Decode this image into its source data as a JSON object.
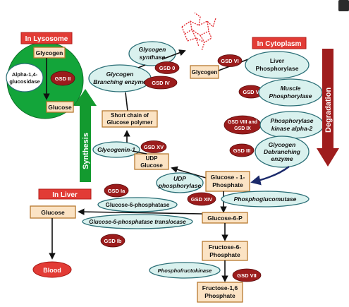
{
  "regions": {
    "lysosome": "In Lysosome",
    "cytoplasm": "In Cytoplasm",
    "liver": "In Liver"
  },
  "nodes": {
    "glycogen_lys": "Glycogen",
    "glucose_lys": "Glucose",
    "alpha_glucosidase": [
      "Alpha-1,4-",
      "glucosidase"
    ],
    "glycogen_synthase": [
      "Glycogen",
      "synthase"
    ],
    "branching_enzyme": [
      "Glycogen",
      "Branching enzyme"
    ],
    "short_chain": [
      "Short chain of",
      "Glucose polymer"
    ],
    "glycogenin": "Glycogenin-1",
    "udp_glucose": [
      "UDP",
      "Glucose"
    ],
    "udp_phosphorylase": [
      "UDP",
      "phosphorylase"
    ],
    "glycogen_cyt": "Glycogen",
    "liver_phosphorylase": [
      "Liver",
      "Phosphorylase"
    ],
    "muscle_phosphorylase": [
      "Muscle",
      "Phosphorylase"
    ],
    "phosphorylase_kinase": [
      "Phosphorylase",
      "kinase alpha-2"
    ],
    "debranching_enzyme": [
      "Glycogen",
      "Debranching",
      "enzyme"
    ],
    "glucose_1_phosphate": [
      "Glucose - 1-",
      "Phosphate"
    ],
    "phosphoglucomutase": "Phosphoglucomutase",
    "glucose_6_phosphatase": "Glucose-6-phosphatase",
    "translocase": "Glucose-6-phosphatase translocase",
    "glucose_liver": "Glucose",
    "glucose_6_p": "Glucose-6-P",
    "fructose_6_phosphate": [
      "Fructose-6-",
      "Phosphate"
    ],
    "phosphofructokinase": "Phosphofructokinase",
    "fructose_16": [
      "Fructose-1,6",
      "Phosphate"
    ],
    "blood": "Blood"
  },
  "gsd": {
    "ii": "GSD II",
    "zero": "GSD 0",
    "iv": "GSD  IV",
    "vi": "GSD VI",
    "v": "GSD V",
    "viii_ix": [
      "GSD VIII and",
      "GSD IX"
    ],
    "iii": "GSD III",
    "xv": "GSD XV",
    "ia": "GSD Ia",
    "xiv": "GSD XIV",
    "ib": "GSD Ib",
    "vii": "GSD VII"
  },
  "arrows": {
    "synthesis": "Synthesis",
    "degradation": "Degradation"
  },
  "colors": {
    "synthesis_arrow": "#139a2f",
    "degradation_arrow": "#9f1d1d",
    "gsd_badge": "#9b1c1c",
    "region_label": "#e23b35",
    "enzyme_ellipse": "#d9f1ee",
    "metabolite_box": "#fbe3c4",
    "glycogen_particle": "#e0242a"
  },
  "icons": {
    "glycogen_particle": "branched-glycogen-icon",
    "external_link": "expand-icon"
  }
}
